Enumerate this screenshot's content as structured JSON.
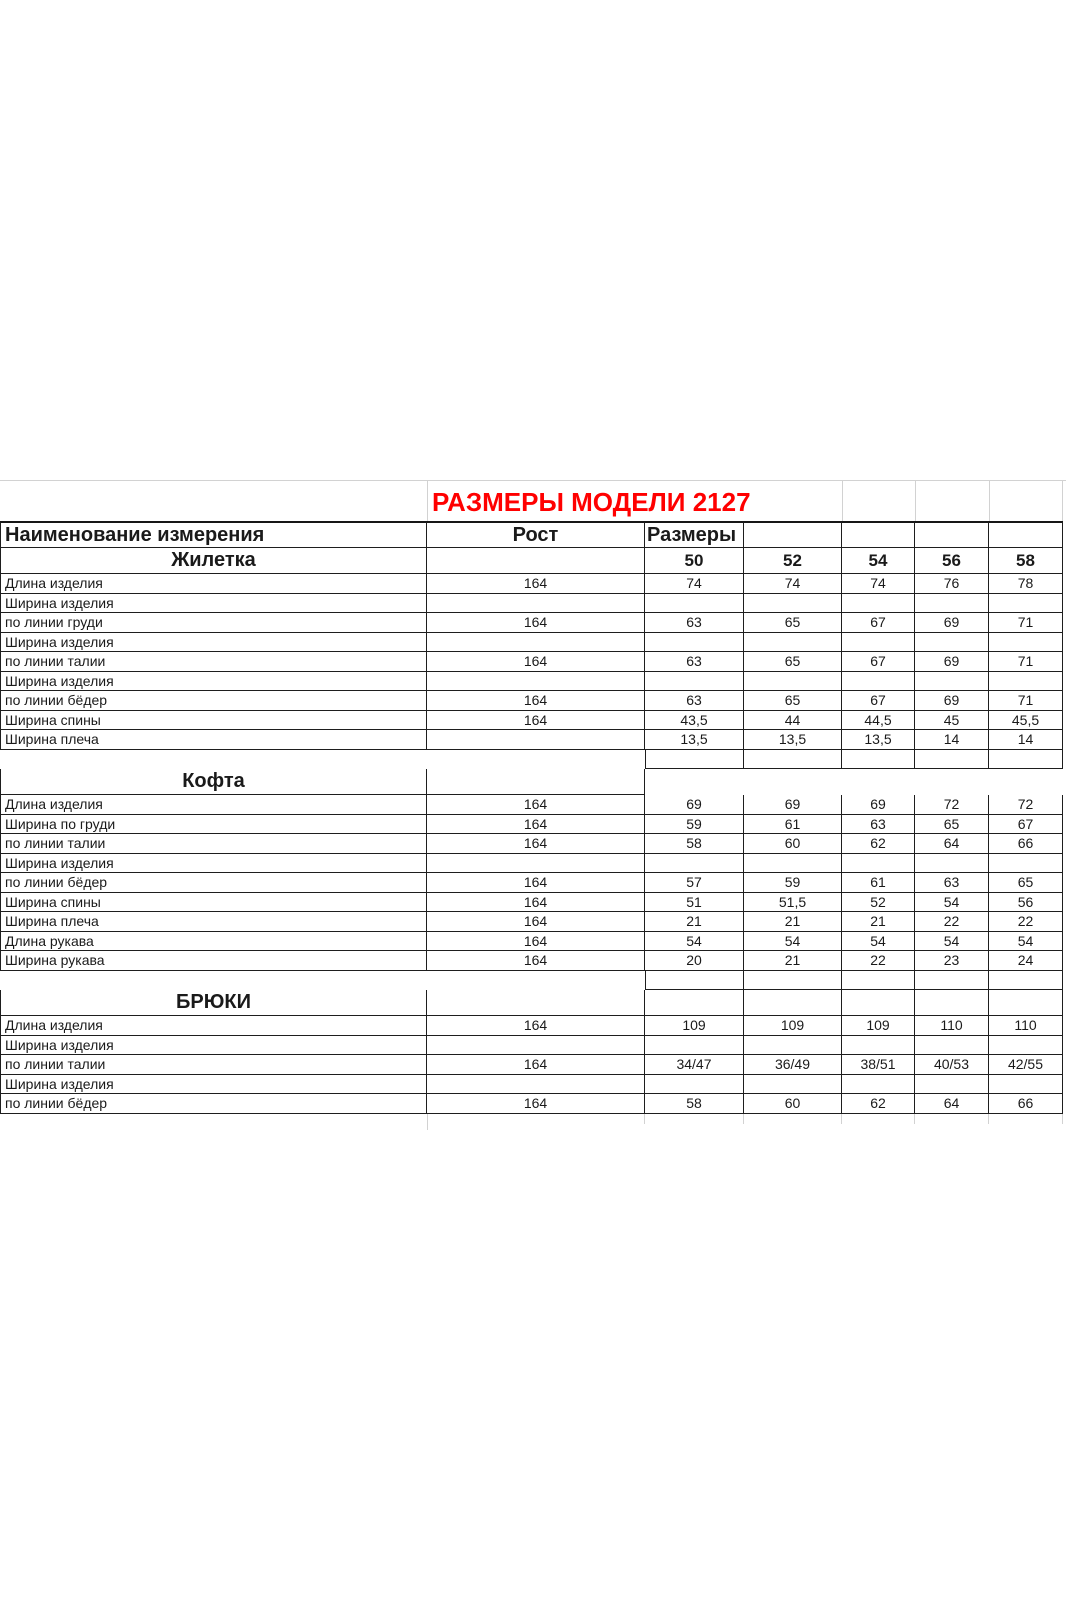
{
  "chart_data": {
    "type": "table",
    "title": "РАЗМЕРЫ МОДЕЛИ 2127",
    "title_color": "#ff0000",
    "border_color": "#1e1e1e",
    "gridline_color": "#d2d2d2",
    "header": {
      "name": "Наименование измерения",
      "rost": "Рост",
      "razmery": "Размеры"
    },
    "sizes": [
      "50",
      "52",
      "54",
      "56",
      "58"
    ],
    "sections": [
      {
        "name": "Жилетка",
        "header_sizes": "values",
        "rows": [
          {
            "label": "Длина изделия",
            "rost": "164",
            "values": [
              "74",
              "74",
              "74",
              "76",
              "78"
            ]
          },
          {
            "label": "Ширина изделия",
            "rost": "",
            "values": [
              "",
              "",
              "",
              "",
              ""
            ]
          },
          {
            "label": "по линии груди",
            "rost": "164",
            "values": [
              "63",
              "65",
              "67",
              "69",
              "71"
            ]
          },
          {
            "label": "Ширина изделия",
            "rost": "",
            "values": [
              "",
              "",
              "",
              "",
              ""
            ]
          },
          {
            "label": "по линии талии",
            "rost": "164",
            "values": [
              "63",
              "65",
              "67",
              "69",
              "71"
            ]
          },
          {
            "label": "Ширина изделия",
            "rost": "",
            "values": [
              "",
              "",
              "",
              "",
              ""
            ]
          },
          {
            "label": "по линии бёдер",
            "rost": "164",
            "values": [
              "63",
              "65",
              "67",
              "69",
              "71"
            ]
          },
          {
            "label": "Ширина спины",
            "rost": "164",
            "values": [
              "43,5",
              "44",
              "44,5",
              "45",
              "45,5"
            ]
          },
          {
            "label": "Ширина плеча",
            "rost": "",
            "values": [
              "13,5",
              "13,5",
              "13,5",
              "14",
              "14"
            ]
          }
        ]
      },
      {
        "name": "Кофта",
        "header_sizes": "none",
        "rows": [
          {
            "label": "Длина изделия",
            "rost": "164",
            "values": [
              "69",
              "69",
              "69",
              "72",
              "72"
            ]
          },
          {
            "label": "Ширина по груди",
            "rost": "164",
            "values": [
              "59",
              "61",
              "63",
              "65",
              "67"
            ]
          },
          {
            "label": "по линии талии",
            "rost": "164",
            "values": [
              "58",
              "60",
              "62",
              "64",
              "66"
            ]
          },
          {
            "label": "Ширина изделия",
            "rost": "",
            "values": [
              "",
              "",
              "",
              "",
              ""
            ]
          },
          {
            "label": "по линии бёдер",
            "rost": "164",
            "values": [
              "57",
              "59",
              "61",
              "63",
              "65"
            ]
          },
          {
            "label": "Ширина спины",
            "rost": "164",
            "values": [
              "51",
              "51,5",
              "52",
              "54",
              "56"
            ]
          },
          {
            "label": "Ширина плеча",
            "rost": "164",
            "values": [
              "21",
              "21",
              "21",
              "22",
              "22"
            ]
          },
          {
            "label": "Длина рукава",
            "rost": "164",
            "values": [
              "54",
              "54",
              "54",
              "54",
              "54"
            ]
          },
          {
            "label": "Ширина рукава",
            "rost": "164",
            "values": [
              "20",
              "21",
              "22",
              "23",
              "24"
            ]
          }
        ]
      },
      {
        "name": "БРЮКИ",
        "header_sizes": "empty",
        "rows": [
          {
            "label": "Длина изделия",
            "rost": "164",
            "values": [
              "109",
              "109",
              "109",
              "110",
              "110"
            ]
          },
          {
            "label": "Ширина изделия",
            "rost": "",
            "values": [
              "",
              "",
              "",
              "",
              ""
            ]
          },
          {
            "label": "по линии талии",
            "rost": "164",
            "values": [
              "34/47",
              "36/49",
              "38/51",
              "40/53",
              "42/55"
            ]
          },
          {
            "label": "Ширина изделия",
            "rost": "",
            "values": [
              "",
              "",
              "",
              "",
              ""
            ]
          },
          {
            "label": "по линии бёдер",
            "rost": "164",
            "values": [
              "58",
              "60",
              "62",
              "64",
              "66"
            ]
          }
        ]
      }
    ]
  }
}
